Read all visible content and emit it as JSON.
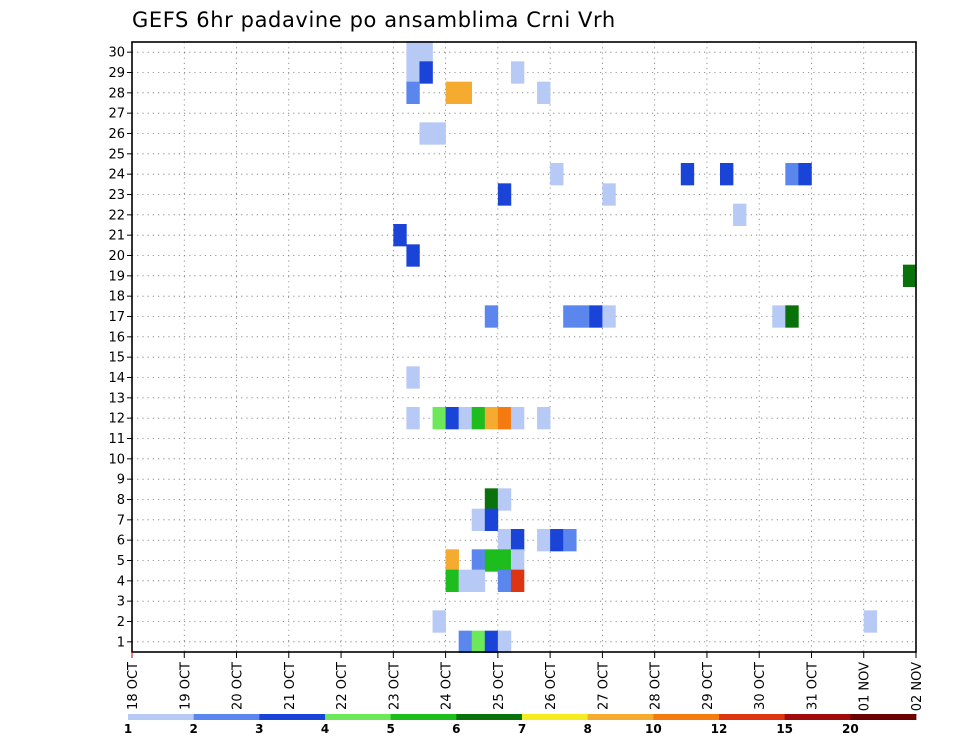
{
  "chart_data": {
    "type": "heatmap",
    "title": "GEFS 6hr padavine po ansamblima Crni Vrh",
    "x_tick_labels": [
      "18 OCT",
      "19 OCT",
      "20 OCT",
      "21 OCT",
      "22 OCT",
      "23 OCT",
      "24 OCT",
      "25 OCT",
      "26 OCT",
      "27 OCT",
      "28 OCT",
      "29 OCT",
      "30 OCT",
      "31 OCT",
      "01 NOV",
      "02 NOV"
    ],
    "x_range_steps": [
      0,
      60
    ],
    "steps_per_day": 4,
    "y_ticks": [
      1,
      2,
      3,
      4,
      5,
      6,
      7,
      8,
      9,
      10,
      11,
      12,
      13,
      14,
      15,
      16,
      17,
      18,
      19,
      20,
      21,
      22,
      23,
      24,
      25,
      26,
      27,
      28,
      29,
      30
    ],
    "grid": true,
    "legend_placement": "bottom",
    "colorbar": {
      "labels": [
        "1",
        "2",
        "3",
        "4",
        "5",
        "6",
        "7",
        "8",
        "10",
        "12",
        "15",
        "20"
      ],
      "colors": [
        "#b7c9f5",
        "#5a86ee",
        "#1a44d8",
        "#6de85a",
        "#1cbd1c",
        "#0a720a",
        "#f5ec20",
        "#f5ab30",
        "#f57a10",
        "#dc3510",
        "#a00c0c",
        "#6a0000"
      ]
    },
    "cells": [
      {
        "member": 30,
        "step": 21,
        "level": 1
      },
      {
        "member": 30,
        "step": 22,
        "level": 1
      },
      {
        "member": 29,
        "step": 21,
        "level": 1
      },
      {
        "member": 29,
        "step": 22,
        "level": 3
      },
      {
        "member": 29,
        "step": 29,
        "level": 1
      },
      {
        "member": 28,
        "step": 21,
        "level": 2
      },
      {
        "member": 28,
        "step": 24,
        "level": 8
      },
      {
        "member": 28,
        "step": 25,
        "level": 8
      },
      {
        "member": 28,
        "step": 31,
        "level": 1
      },
      {
        "member": 26,
        "step": 22,
        "level": 1
      },
      {
        "member": 26,
        "step": 23,
        "level": 1
      },
      {
        "member": 24,
        "step": 32,
        "level": 1
      },
      {
        "member": 24,
        "step": 42,
        "level": 3
      },
      {
        "member": 24,
        "step": 45,
        "level": 3
      },
      {
        "member": 24,
        "step": 50,
        "level": 2
      },
      {
        "member": 24,
        "step": 51,
        "level": 3
      },
      {
        "member": 23,
        "step": 28,
        "level": 3
      },
      {
        "member": 23,
        "step": 36,
        "level": 1
      },
      {
        "member": 22,
        "step": 46,
        "level": 1
      },
      {
        "member": 21,
        "step": 20,
        "level": 3
      },
      {
        "member": 20,
        "step": 21,
        "level": 3
      },
      {
        "member": 19,
        "step": 59,
        "level": 6
      },
      {
        "member": 17,
        "step": 27,
        "level": 2
      },
      {
        "member": 17,
        "step": 33,
        "level": 2
      },
      {
        "member": 17,
        "step": 34,
        "level": 2
      },
      {
        "member": 17,
        "step": 35,
        "level": 3
      },
      {
        "member": 17,
        "step": 36,
        "level": 1
      },
      {
        "member": 17,
        "step": 49,
        "level": 1
      },
      {
        "member": 17,
        "step": 50,
        "level": 6
      },
      {
        "member": 14,
        "step": 21,
        "level": 1
      },
      {
        "member": 12,
        "step": 21,
        "level": 1
      },
      {
        "member": 12,
        "step": 23,
        "level": 4
      },
      {
        "member": 12,
        "step": 24,
        "level": 3
      },
      {
        "member": 12,
        "step": 25,
        "level": 1
      },
      {
        "member": 12,
        "step": 26,
        "level": 5
      },
      {
        "member": 12,
        "step": 27,
        "level": 8
      },
      {
        "member": 12,
        "step": 28,
        "level": 9
      },
      {
        "member": 12,
        "step": 29,
        "level": 1
      },
      {
        "member": 12,
        "step": 31,
        "level": 1
      },
      {
        "member": 8,
        "step": 27,
        "level": 6
      },
      {
        "member": 8,
        "step": 28,
        "level": 1
      },
      {
        "member": 7,
        "step": 26,
        "level": 1
      },
      {
        "member": 7,
        "step": 27,
        "level": 3
      },
      {
        "member": 6,
        "step": 28,
        "level": 1
      },
      {
        "member": 6,
        "step": 29,
        "level": 3
      },
      {
        "member": 6,
        "step": 31,
        "level": 1
      },
      {
        "member": 6,
        "step": 32,
        "level": 3
      },
      {
        "member": 6,
        "step": 33,
        "level": 2
      },
      {
        "member": 5,
        "step": 24,
        "level": 8
      },
      {
        "member": 5,
        "step": 26,
        "level": 2
      },
      {
        "member": 5,
        "step": 27,
        "level": 5
      },
      {
        "member": 5,
        "step": 28,
        "level": 5
      },
      {
        "member": 5,
        "step": 29,
        "level": 1
      },
      {
        "member": 4,
        "step": 24,
        "level": 5
      },
      {
        "member": 4,
        "step": 25,
        "level": 1
      },
      {
        "member": 4,
        "step": 26,
        "level": 1
      },
      {
        "member": 4,
        "step": 28,
        "level": 2
      },
      {
        "member": 4,
        "step": 29,
        "level": 10
      },
      {
        "member": 2,
        "step": 23,
        "level": 1
      },
      {
        "member": 2,
        "step": 56,
        "level": 1
      },
      {
        "member": 1,
        "step": 25,
        "level": 2
      },
      {
        "member": 1,
        "step": 26,
        "level": 4
      },
      {
        "member": 1,
        "step": 27,
        "level": 3
      },
      {
        "member": 1,
        "step": 28,
        "level": 1
      }
    ]
  }
}
